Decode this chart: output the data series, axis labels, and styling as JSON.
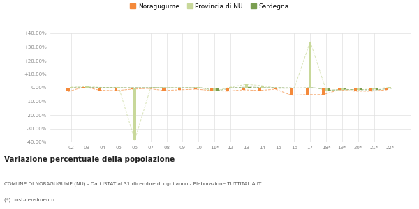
{
  "categories": [
    "02",
    "03",
    "04",
    "05",
    "06",
    "07",
    "08",
    "09",
    "10",
    "11*",
    "12",
    "13",
    "14",
    "15",
    "16",
    "17",
    "18*",
    "19*",
    "20*",
    "21*",
    "22*"
  ],
  "noragugume": [
    -2.8,
    0.6,
    -1.8,
    -2.1,
    -1.0,
    -0.5,
    -2.0,
    -1.5,
    -1.0,
    -2.0,
    -2.5,
    -1.5,
    -2.0,
    -1.0,
    -5.5,
    -5.0,
    -5.0,
    -1.5,
    -2.5,
    -2.5,
    -1.5
  ],
  "provincia_nu": [
    0.5,
    0.8,
    0.2,
    0.3,
    -38.5,
    0.2,
    0.1,
    -0.2,
    0.3,
    -2.5,
    0.5,
    2.5,
    1.5,
    -0.5,
    -0.3,
    34.0,
    -1.8,
    -1.5,
    -1.5,
    -0.8,
    0.3
  ],
  "sardegna": [
    0.1,
    0.2,
    0.1,
    0.1,
    0.1,
    0.1,
    0.0,
    0.1,
    0.0,
    -2.2,
    0.1,
    0.5,
    0.1,
    0.1,
    -0.2,
    0.1,
    -1.8,
    -1.2,
    -1.5,
    -1.5,
    -0.3
  ],
  "color_noragugume": "#f4893a",
  "color_provincia": "#c8d89a",
  "color_sardegna": "#7a9e50",
  "ylim": [
    -40,
    40
  ],
  "yticks": [
    -40,
    -30,
    -20,
    -10,
    0,
    10,
    20,
    30,
    40
  ],
  "title": "Variazione percentuale della popolazione",
  "subtitle": "COMUNE DI NORAGUGUME (NU) - Dati ISTAT al 31 dicembre di ogni anno - Elaborazione TUTTITALIA.IT",
  "footnote": "(*) post-censimento",
  "legend_labels": [
    "Noragugume",
    "Provincia di NU",
    "Sardegna"
  ],
  "bg_color": "#ffffff",
  "plot_bg_color": "#ffffff",
  "grid_color": "#e0e0e0"
}
